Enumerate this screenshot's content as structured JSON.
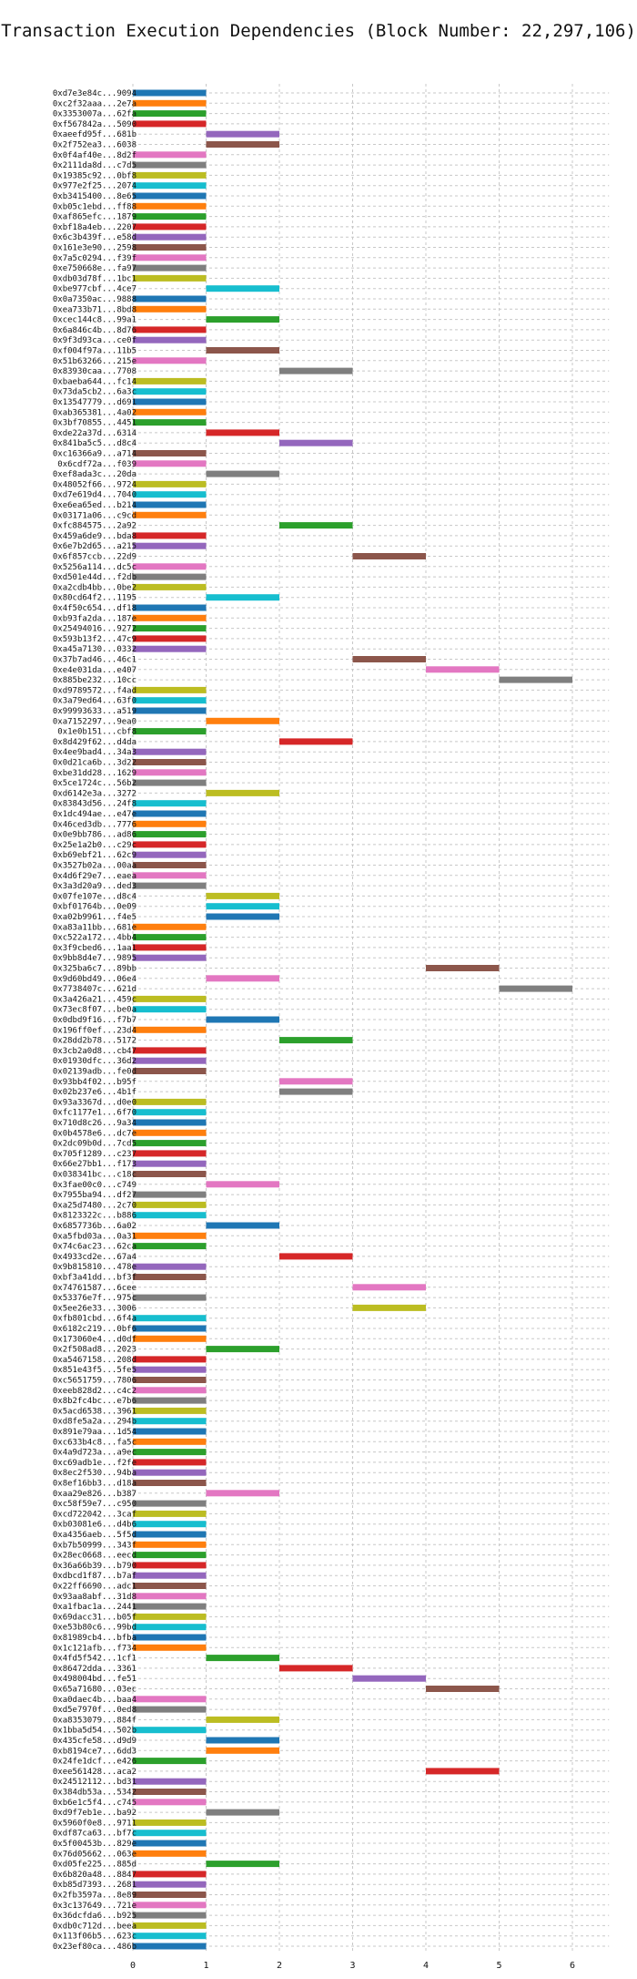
{
  "chart_data": {
    "type": "bar",
    "orientation": "horizontal-gantt",
    "title": "Transaction Execution Dependencies (Block Number: 22,297,106)",
    "xlabel": "",
    "ylabel": "",
    "xlim": [
      0,
      6.5
    ],
    "x_ticks": [
      0,
      1,
      2,
      3,
      4,
      5,
      6
    ],
    "grid": true,
    "palette": [
      "#1f77b4",
      "#ff7f0e",
      "#2ca02c",
      "#d62728",
      "#9467bd",
      "#8c564b",
      "#e377c2",
      "#7f7f7f",
      "#bcbd22",
      "#17becf"
    ],
    "transactions": [
      {
        "id": "0xd7e3e84c...9094",
        "start": 0,
        "end": 1
      },
      {
        "id": "0xc2f32aaa...2e7a",
        "start": 0,
        "end": 1
      },
      {
        "id": "0x3353007a...62fa",
        "start": 0,
        "end": 1
      },
      {
        "id": "0xf567842a...5090",
        "start": 0,
        "end": 1
      },
      {
        "id": "0xaeefd95f...681b",
        "start": 1,
        "end": 2
      },
      {
        "id": "0x2f752ea3...6038",
        "start": 1,
        "end": 2
      },
      {
        "id": "0x0f4af40e...8d2f",
        "start": 0,
        "end": 1
      },
      {
        "id": "0x2111da8d...c7d5",
        "start": 0,
        "end": 1
      },
      {
        "id": "0x19385c92...0bf8",
        "start": 0,
        "end": 1
      },
      {
        "id": "0x977e2f25...2074",
        "start": 0,
        "end": 1
      },
      {
        "id": "0xb3415400...8e65",
        "start": 0,
        "end": 1
      },
      {
        "id": "0xb05c1ebd...ff88",
        "start": 0,
        "end": 1
      },
      {
        "id": "0xaf865efc...1879",
        "start": 0,
        "end": 1
      },
      {
        "id": "0xbf18a4eb...2207",
        "start": 0,
        "end": 1
      },
      {
        "id": "0x6c3b439f...e58d",
        "start": 0,
        "end": 1
      },
      {
        "id": "0x161e3e90...2598",
        "start": 0,
        "end": 1
      },
      {
        "id": "0x7a5c0294...f39f",
        "start": 0,
        "end": 1
      },
      {
        "id": "0xe750668e...fa97",
        "start": 0,
        "end": 1
      },
      {
        "id": "0xdb03d78f...1bc1",
        "start": 0,
        "end": 1
      },
      {
        "id": "0xbe977cbf...4ce7",
        "start": 1,
        "end": 2
      },
      {
        "id": "0x0a7350ac...9888",
        "start": 0,
        "end": 1
      },
      {
        "id": "0xea733b71...8bd8",
        "start": 0,
        "end": 1
      },
      {
        "id": "0xcec144c8...99a1",
        "start": 1,
        "end": 2
      },
      {
        "id": "0x6a846c4b...8d76",
        "start": 0,
        "end": 1
      },
      {
        "id": "0x9f3d93ca...ce0f",
        "start": 0,
        "end": 1
      },
      {
        "id": "0xf004f97a...11b5",
        "start": 1,
        "end": 2
      },
      {
        "id": "0x51b63266...215e",
        "start": 0,
        "end": 1
      },
      {
        "id": "0x83930caa...7708",
        "start": 2,
        "end": 3
      },
      {
        "id": "0xbaeba644...fc14",
        "start": 0,
        "end": 1
      },
      {
        "id": "0x73da5cb2...6a3c",
        "start": 0,
        "end": 1
      },
      {
        "id": "0x13547779...d691",
        "start": 0,
        "end": 1
      },
      {
        "id": "0xab365381...4a02",
        "start": 0,
        "end": 1
      },
      {
        "id": "0x3bf70855...4451",
        "start": 0,
        "end": 1
      },
      {
        "id": "0xde22a37d...6314",
        "start": 1,
        "end": 2
      },
      {
        "id": "0x841ba5c5...d8c4",
        "start": 2,
        "end": 3
      },
      {
        "id": "0xc16366a9...a714",
        "start": 0,
        "end": 1
      },
      {
        "id": "0x6cdf72a...f039",
        "start": 0,
        "end": 1
      },
      {
        "id": "0xef8ada3c...20da",
        "start": 1,
        "end": 2
      },
      {
        "id": "0x48052f66...9724",
        "start": 0,
        "end": 1
      },
      {
        "id": "0xd7e619d4...7040",
        "start": 0,
        "end": 1
      },
      {
        "id": "0xe6ea65ed...b214",
        "start": 0,
        "end": 1
      },
      {
        "id": "0x03171a06...c9cd",
        "start": 0,
        "end": 1
      },
      {
        "id": "0xfc884575...2a92",
        "start": 2,
        "end": 3
      },
      {
        "id": "0x459a6de9...bda8",
        "start": 0,
        "end": 1
      },
      {
        "id": "0x6e7b2d65...a215",
        "start": 0,
        "end": 1
      },
      {
        "id": "0x6f857ccb...22d9",
        "start": 3,
        "end": 4
      },
      {
        "id": "0x5256a114...dc5c",
        "start": 0,
        "end": 1
      },
      {
        "id": "0xd501e44d...f2db",
        "start": 0,
        "end": 1
      },
      {
        "id": "0xa2cdb4bb...0be2",
        "start": 0,
        "end": 1
      },
      {
        "id": "0x80cd64f2...1195",
        "start": 1,
        "end": 2
      },
      {
        "id": "0x4f50c654...df18",
        "start": 0,
        "end": 1
      },
      {
        "id": "0xb93fa2da...187e",
        "start": 0,
        "end": 1
      },
      {
        "id": "0x25494016...9272",
        "start": 0,
        "end": 1
      },
      {
        "id": "0x593b13f2...47c9",
        "start": 0,
        "end": 1
      },
      {
        "id": "0xa45a7130...0332",
        "start": 0,
        "end": 1
      },
      {
        "id": "0x37b7ad46...46c1",
        "start": 3,
        "end": 4
      },
      {
        "id": "0xe4e031da...e407",
        "start": 4,
        "end": 5
      },
      {
        "id": "0x885be232...10cc",
        "start": 5,
        "end": 6
      },
      {
        "id": "0xd9789572...f4ad",
        "start": 0,
        "end": 1
      },
      {
        "id": "0x3a79ed64...63f0",
        "start": 0,
        "end": 1
      },
      {
        "id": "0x99993633...a519",
        "start": 0,
        "end": 1
      },
      {
        "id": "0xa7152297...9ea0",
        "start": 1,
        "end": 2
      },
      {
        "id": "0x1e0b151...cbf8",
        "start": 0,
        "end": 1
      },
      {
        "id": "0x8d429f62...d4da",
        "start": 2,
        "end": 3
      },
      {
        "id": "0x4ee9bad4...34a3",
        "start": 0,
        "end": 1
      },
      {
        "id": "0x0d21ca6b...3d22",
        "start": 0,
        "end": 1
      },
      {
        "id": "0xbe31dd28...1629",
        "start": 0,
        "end": 1
      },
      {
        "id": "0x5ce1724c...56b2",
        "start": 0,
        "end": 1
      },
      {
        "id": "0xd6142e3a...3272",
        "start": 1,
        "end": 2
      },
      {
        "id": "0x83843d56...24f8",
        "start": 0,
        "end": 1
      },
      {
        "id": "0x1dc494ae...e47e",
        "start": 0,
        "end": 1
      },
      {
        "id": "0x46ced3db...7776",
        "start": 0,
        "end": 1
      },
      {
        "id": "0x0e9bb786...ad86",
        "start": 0,
        "end": 1
      },
      {
        "id": "0x25e1a2b0...c29c",
        "start": 0,
        "end": 1
      },
      {
        "id": "0xb69ebf21...62c9",
        "start": 0,
        "end": 1
      },
      {
        "id": "0x3527b02a...00aa",
        "start": 0,
        "end": 1
      },
      {
        "id": "0x4d6f29e7...eaea",
        "start": 0,
        "end": 1
      },
      {
        "id": "0x3a3d20a9...ded3",
        "start": 0,
        "end": 1
      },
      {
        "id": "0x07fe107e...d8c4",
        "start": 1,
        "end": 2
      },
      {
        "id": "0xbf01764b...0e09",
        "start": 1,
        "end": 2
      },
      {
        "id": "0xa02b9961...f4e5",
        "start": 1,
        "end": 2
      },
      {
        "id": "0xa83a11bb...681e",
        "start": 0,
        "end": 1
      },
      {
        "id": "0xc522a172...4bb4",
        "start": 0,
        "end": 1
      },
      {
        "id": "0x3f9cbed6...1aa1",
        "start": 0,
        "end": 1
      },
      {
        "id": "0x9bb8d4e7...9895",
        "start": 0,
        "end": 1
      },
      {
        "id": "0x325ba6c7...89bb",
        "start": 4,
        "end": 5
      },
      {
        "id": "0x9d60bd49...06e4",
        "start": 1,
        "end": 2
      },
      {
        "id": "0x7738407c...621d",
        "start": 5,
        "end": 6
      },
      {
        "id": "0x3a426a21...459c",
        "start": 0,
        "end": 1
      },
      {
        "id": "0x73ec8f07...be0a",
        "start": 0,
        "end": 1
      },
      {
        "id": "0x0dbd9f16...f7b7",
        "start": 1,
        "end": 2
      },
      {
        "id": "0x196ff0ef...23d4",
        "start": 0,
        "end": 1
      },
      {
        "id": "0x28dd2b78...5172",
        "start": 2,
        "end": 3
      },
      {
        "id": "0x3cb2a0d8...cb47",
        "start": 0,
        "end": 1
      },
      {
        "id": "0x01930dfc...36d2",
        "start": 0,
        "end": 1
      },
      {
        "id": "0x02139adb...fe0d",
        "start": 0,
        "end": 1
      },
      {
        "id": "0x93bb4f02...b95f",
        "start": 2,
        "end": 3
      },
      {
        "id": "0x02b237e6...4b1f",
        "start": 2,
        "end": 3
      },
      {
        "id": "0x93a3367d...d0e0",
        "start": 0,
        "end": 1
      },
      {
        "id": "0xfc1177e1...6f70",
        "start": 0,
        "end": 1
      },
      {
        "id": "0x710d8c26...9a34",
        "start": 0,
        "end": 1
      },
      {
        "id": "0x0b4578e6...dc7e",
        "start": 0,
        "end": 1
      },
      {
        "id": "0x2dc09b0d...7cd5",
        "start": 0,
        "end": 1
      },
      {
        "id": "0x705f1289...c237",
        "start": 0,
        "end": 1
      },
      {
        "id": "0x66e27bb1...f173",
        "start": 0,
        "end": 1
      },
      {
        "id": "0x038341bc...c18c",
        "start": 0,
        "end": 1
      },
      {
        "id": "0x3fae00c0...c749",
        "start": 1,
        "end": 2
      },
      {
        "id": "0x7955ba94...df27",
        "start": 0,
        "end": 1
      },
      {
        "id": "0xa25d7480...2c70",
        "start": 0,
        "end": 1
      },
      {
        "id": "0x8123322c...b886",
        "start": 0,
        "end": 1
      },
      {
        "id": "0x6857736b...6a02",
        "start": 1,
        "end": 2
      },
      {
        "id": "0xa5fbd03a...0a31",
        "start": 0,
        "end": 1
      },
      {
        "id": "0x74c6ac23...62ca",
        "start": 0,
        "end": 1
      },
      {
        "id": "0x4933cd2e...67a4",
        "start": 2,
        "end": 3
      },
      {
        "id": "0x9b815810...478e",
        "start": 0,
        "end": 1
      },
      {
        "id": "0xbf3a41dd...bf3f",
        "start": 0,
        "end": 1
      },
      {
        "id": "0x74761587...6cee",
        "start": 3,
        "end": 4
      },
      {
        "id": "0x53376e7f...975c",
        "start": 0,
        "end": 1
      },
      {
        "id": "0x5ee26e33...3006",
        "start": 3,
        "end": 4
      },
      {
        "id": "0xfb801cbd...6f4a",
        "start": 0,
        "end": 1
      },
      {
        "id": "0x6182c219...0bf6",
        "start": 0,
        "end": 1
      },
      {
        "id": "0x173060e4...d0df",
        "start": 0,
        "end": 1
      },
      {
        "id": "0x2f508ad8...2023",
        "start": 1,
        "end": 2
      },
      {
        "id": "0xa5467158...208d",
        "start": 0,
        "end": 1
      },
      {
        "id": "0x851e43f5...5fe5",
        "start": 0,
        "end": 1
      },
      {
        "id": "0xc5651759...7806",
        "start": 0,
        "end": 1
      },
      {
        "id": "0xeeb828d2...c4c2",
        "start": 0,
        "end": 1
      },
      {
        "id": "0x8b2fc4bc...e7b6",
        "start": 0,
        "end": 1
      },
      {
        "id": "0x5acd6538...3961",
        "start": 0,
        "end": 1
      },
      {
        "id": "0xd8fe5a2a...294b",
        "start": 0,
        "end": 1
      },
      {
        "id": "0x891e79aa...1d54",
        "start": 0,
        "end": 1
      },
      {
        "id": "0xc633b4c8...fa5c",
        "start": 0,
        "end": 1
      },
      {
        "id": "0x4a9d723a...a9ec",
        "start": 0,
        "end": 1
      },
      {
        "id": "0xc69adb1e...f2fe",
        "start": 0,
        "end": 1
      },
      {
        "id": "0x8ec2f530...94ba",
        "start": 0,
        "end": 1
      },
      {
        "id": "0x8ef16bb3...d18a",
        "start": 0,
        "end": 1
      },
      {
        "id": "0xaa29e826...b387",
        "start": 1,
        "end": 2
      },
      {
        "id": "0xc58f59e7...c950",
        "start": 0,
        "end": 1
      },
      {
        "id": "0xcd722042...3caf",
        "start": 0,
        "end": 1
      },
      {
        "id": "0xb03081e6...d4b6",
        "start": 0,
        "end": 1
      },
      {
        "id": "0xa4356aeb...5f5d",
        "start": 0,
        "end": 1
      },
      {
        "id": "0xb7b50999...343f",
        "start": 0,
        "end": 1
      },
      {
        "id": "0x28ec0668...eecd",
        "start": 0,
        "end": 1
      },
      {
        "id": "0x36a66b39...b790",
        "start": 0,
        "end": 1
      },
      {
        "id": "0xdbcd1f87...b7af",
        "start": 0,
        "end": 1
      },
      {
        "id": "0x22ff6690...adc1",
        "start": 0,
        "end": 1
      },
      {
        "id": "0x93aa8abf...31d8",
        "start": 0,
        "end": 1
      },
      {
        "id": "0xa1fbac1a...2441",
        "start": 0,
        "end": 1
      },
      {
        "id": "0x69dacc31...b05f",
        "start": 0,
        "end": 1
      },
      {
        "id": "0xe53b80c6...99bd",
        "start": 0,
        "end": 1
      },
      {
        "id": "0x81989cb4...bfba",
        "start": 0,
        "end": 1
      },
      {
        "id": "0x1c121afb...f734",
        "start": 0,
        "end": 1
      },
      {
        "id": "0x4fd5f542...1cf1",
        "start": 1,
        "end": 2
      },
      {
        "id": "0x86472dda...3361",
        "start": 2,
        "end": 3
      },
      {
        "id": "0x498004bd...fe51",
        "start": 3,
        "end": 4
      },
      {
        "id": "0x65a71680...03ec",
        "start": 4,
        "end": 5
      },
      {
        "id": "0xa0daec4b...baa4",
        "start": 0,
        "end": 1
      },
      {
        "id": "0xd5e7970f...0ed8",
        "start": 0,
        "end": 1
      },
      {
        "id": "0xa8353079...884f",
        "start": 1,
        "end": 2
      },
      {
        "id": "0x1bba5d54...502b",
        "start": 0,
        "end": 1
      },
      {
        "id": "0x435cfe58...d9d9",
        "start": 1,
        "end": 2
      },
      {
        "id": "0xb8194ce7...6dd3",
        "start": 1,
        "end": 2
      },
      {
        "id": "0x24fe1dcf...e426",
        "start": 0,
        "end": 1
      },
      {
        "id": "0xee561428...aca2",
        "start": 4,
        "end": 5
      },
      {
        "id": "0x24512112...bd31",
        "start": 0,
        "end": 1
      },
      {
        "id": "0x384db53a...5342",
        "start": 0,
        "end": 1
      },
      {
        "id": "0xb6e1c5f4...c745",
        "start": 0,
        "end": 1
      },
      {
        "id": "0xd9f7eb1e...ba92",
        "start": 1,
        "end": 2
      },
      {
        "id": "0x5960f0e8...9711",
        "start": 0,
        "end": 1
      },
      {
        "id": "0xdf87ca63...bf7c",
        "start": 0,
        "end": 1
      },
      {
        "id": "0x5f00453b...829e",
        "start": 0,
        "end": 1
      },
      {
        "id": "0x76d05662...063e",
        "start": 0,
        "end": 1
      },
      {
        "id": "0xd05fe225...885d",
        "start": 1,
        "end": 2
      },
      {
        "id": "0x6b820a48...8847",
        "start": 0,
        "end": 1
      },
      {
        "id": "0xb85d7393...2681",
        "start": 0,
        "end": 1
      },
      {
        "id": "0x2fb3597a...8e89",
        "start": 0,
        "end": 1
      },
      {
        "id": "0x3c137649...721e",
        "start": 0,
        "end": 1
      },
      {
        "id": "0x36dcfda6...b925",
        "start": 0,
        "end": 1
      },
      {
        "id": "0xdb0c712d...beea",
        "start": 0,
        "end": 1
      },
      {
        "id": "0x113f06b5...623c",
        "start": 0,
        "end": 1
      },
      {
        "id": "0x23ef80ca...486b",
        "start": 0,
        "end": 1
      }
    ]
  }
}
